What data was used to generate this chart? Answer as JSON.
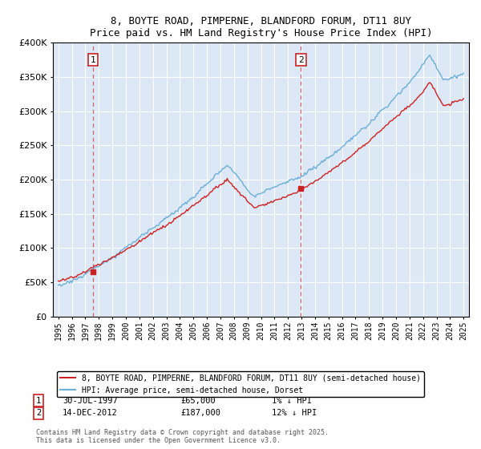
{
  "title": "8, BOYTE ROAD, PIMPERNE, BLANDFORD FORUM, DT11 8UY",
  "subtitle": "Price paid vs. HM Land Registry's House Price Index (HPI)",
  "legend_line1": "8, BOYTE ROAD, PIMPERNE, BLANDFORD FORUM, DT11 8UY (semi-detached house)",
  "legend_line2": "HPI: Average price, semi-detached house, Dorset",
  "annotation1_label": "1",
  "annotation1_date": "30-JUL-1997",
  "annotation1_price": "£65,000",
  "annotation1_hpi": "1% ↓ HPI",
  "annotation2_label": "2",
  "annotation2_date": "14-DEC-2012",
  "annotation2_price": "£187,000",
  "annotation2_hpi": "12% ↓ HPI",
  "footnote": "Contains HM Land Registry data © Crown copyright and database right 2025.\nThis data is licensed under the Open Government Licence v3.0.",
  "sale1_year": 1997.57,
  "sale1_price": 65000,
  "sale2_year": 2012.96,
  "sale2_price": 187000,
  "hpi_color": "#6baed6",
  "price_color": "#cc2222",
  "dashed_line_color": "#cc4444",
  "plot_bg_color": "#dce8f5",
  "grid_color": "#ffffff",
  "ylim": [
    0,
    400000
  ],
  "xlim_start": 1994.6,
  "xlim_end": 2025.4
}
